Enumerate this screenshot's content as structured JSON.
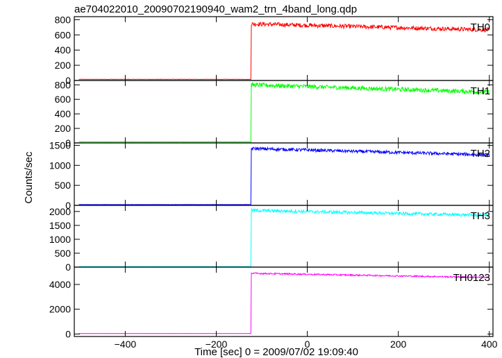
{
  "chart_data": {
    "type": "line",
    "title": "ae704022010_20090702190940_wam2_trn_4band_long.qdp",
    "xlabel": "Time [sec] 0 = 2009/07/02 19:09:40",
    "ylabel": "Counts/sec",
    "xlim": [
      -512,
      408
    ],
    "x_ticks": [
      -400,
      -200,
      0,
      200,
      400
    ],
    "step_time": -123,
    "panels": [
      {
        "name": "TH0",
        "color": "#ff0000",
        "ylim": [
          0,
          840
        ],
        "y_ticks": [
          0,
          200,
          400,
          600,
          800
        ],
        "pre_level": 15,
        "post_start": 745,
        "post_end": 665,
        "noise": 28
      },
      {
        "name": "TH1",
        "color": "#00ff00",
        "ylim": [
          0,
          860
        ],
        "y_ticks": [
          0,
          200,
          400,
          600,
          800
        ],
        "pre_level": 15,
        "post_start": 800,
        "post_end": 700,
        "noise": 30
      },
      {
        "name": "TH2",
        "color": "#0000ff",
        "ylim": [
          0,
          1560
        ],
        "y_ticks": [
          0,
          500,
          1000,
          1500
        ],
        "pre_level": 20,
        "post_start": 1420,
        "post_end": 1260,
        "noise": 40
      },
      {
        "name": "TH3",
        "color": "#00ffff",
        "ylim": [
          0,
          2220
        ],
        "y_ticks": [
          0,
          500,
          1000,
          1500,
          2000
        ],
        "pre_level": 20,
        "post_start": 2040,
        "post_end": 1860,
        "noise": 55
      },
      {
        "name": "TH0123",
        "color": "#ff00ff",
        "ylim": [
          -200,
          5400
        ],
        "y_ticks": [
          0,
          2000,
          4000
        ],
        "pre_level": 40,
        "post_start": 4900,
        "post_end": 4560,
        "noise": 60
      }
    ]
  }
}
